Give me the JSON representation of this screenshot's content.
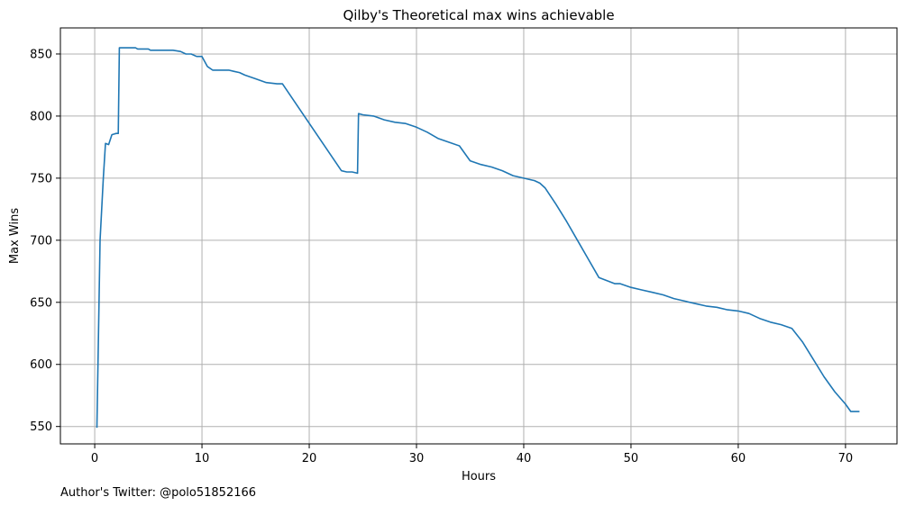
{
  "chart_data": {
    "type": "line",
    "title": "Qilby's Theoretical max wins achievable",
    "xlabel": "Hours",
    "ylabel": "Max Wins",
    "xlim": [
      -3.2,
      74.8
    ],
    "ylim": [
      536,
      871
    ],
    "xticks": [
      0,
      10,
      20,
      30,
      40,
      50,
      60,
      70
    ],
    "yticks": [
      550,
      600,
      650,
      700,
      750,
      800,
      850
    ],
    "grid": true,
    "legend": "none",
    "line_color": "#1f77b4",
    "series": [
      {
        "x": [
          0.2,
          0.5,
          0.8,
          1.0,
          1.3,
          1.6,
          2.0,
          2.2,
          2.3,
          3.0,
          3.8,
          4.0,
          5.0,
          5.2,
          7.3,
          8.0,
          8.5,
          9.0,
          9.5,
          10.0,
          10.5,
          11.0,
          12.0,
          12.5,
          13.0,
          13.5,
          14.0,
          15.0,
          16.0,
          17.0,
          17.5,
          23.0,
          23.5,
          24.0,
          24.5,
          24.6,
          25.0,
          26.0,
          27.0,
          28.0,
          29.0,
          30.0,
          31.0,
          32.0,
          33.0,
          34.0,
          35.0,
          36.0,
          37.0,
          38.0,
          39.0,
          40.0,
          41.0,
          41.5,
          42.0,
          43.0,
          44.0,
          45.0,
          46.0,
          47.0,
          47.6,
          48.5,
          49.0,
          50.0,
          51.0,
          52.0,
          53.0,
          54.0,
          55.0,
          56.0,
          57.0,
          58.0,
          59.0,
          60.0,
          61.0,
          62.0,
          63.0,
          64.0,
          65.0,
          66.0,
          67.0,
          68.0,
          69.0,
          70.0,
          70.5,
          71.3
        ],
        "y": [
          549,
          700,
          750,
          778,
          777,
          785,
          786,
          786,
          855,
          855,
          855,
          854,
          854,
          853,
          853,
          852,
          850,
          850,
          848,
          848,
          840,
          837,
          837,
          837,
          836,
          835,
          833,
          830,
          827,
          826,
          826,
          756,
          755,
          755,
          754,
          802,
          801,
          800,
          797,
          795,
          794,
          791,
          787,
          782,
          779,
          776,
          764,
          761,
          759,
          756,
          752,
          750,
          748,
          746,
          742,
          729,
          715,
          700,
          685,
          670,
          668,
          665,
          665,
          662,
          660,
          658,
          656,
          653,
          651,
          649,
          647,
          646,
          644,
          643,
          641,
          637,
          634,
          632,
          629,
          618,
          604,
          590,
          578,
          568,
          562,
          562
        ]
      }
    ]
  },
  "footnote": "Author's Twitter: @polo51852166"
}
